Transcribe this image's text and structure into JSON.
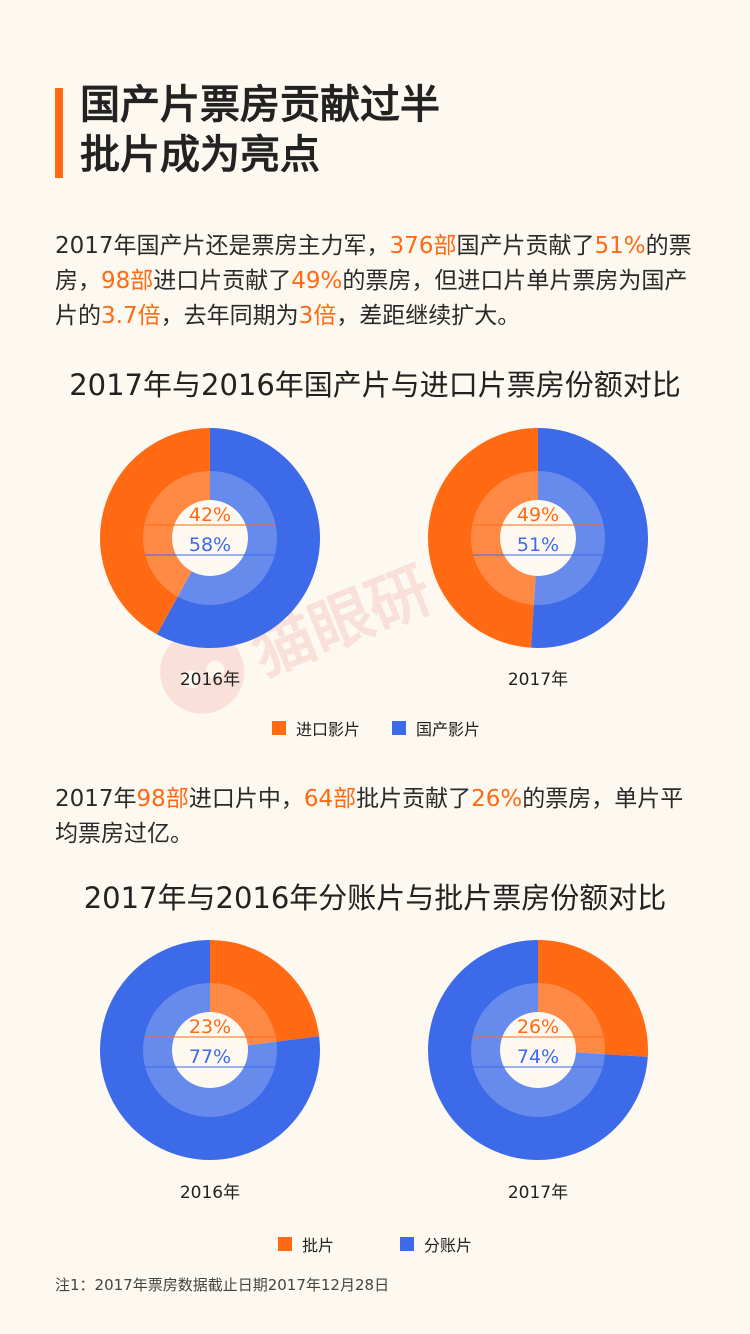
{
  "heading": {
    "line1": "国产片票房贡献过半",
    "line2": "批片成为亮点"
  },
  "para1": [
    {
      "t": "2017年国产片还是票房主力军，"
    },
    {
      "t": "376部",
      "hl": true
    },
    {
      "t": "国产片贡献了"
    },
    {
      "t": "51%",
      "hl": true
    },
    {
      "t": "的票房，"
    },
    {
      "t": "98部",
      "hl": true
    },
    {
      "t": "进口片贡献了"
    },
    {
      "t": "49%",
      "hl": true
    },
    {
      "t": "的票房，但进口片单片票房为国产片的"
    },
    {
      "t": "3.7倍",
      "hl": true
    },
    {
      "t": "，去年同期为"
    },
    {
      "t": "3倍",
      "hl": true
    },
    {
      "t": "，差距继续扩大。"
    }
  ],
  "para2": [
    {
      "t": "2017年"
    },
    {
      "t": "98部",
      "hl": true
    },
    {
      "t": "进口片中，"
    },
    {
      "t": "64部",
      "hl": true
    },
    {
      "t": "批片贡献了"
    },
    {
      "t": "26%",
      "hl": true
    },
    {
      "t": "的票房，单片平均票房过亿。"
    }
  ],
  "note": "注1：2017年票房数据截止日期2017年12月28日",
  "watermark": "猫眼研",
  "colors": {
    "orange": "#ff6a12",
    "blue": "#3d6ae8",
    "background": "#fdf8f0"
  },
  "chart_data": [
    {
      "type": "pie",
      "title": "2017年与2016年国产片与进口片票房份额对比",
      "legend": [
        {
          "name": "进口影片",
          "color": "#ff6a12"
        },
        {
          "name": "国产影片",
          "color": "#3d6ae8"
        }
      ],
      "pies": [
        {
          "label": "2016年",
          "values": [
            42,
            58
          ],
          "labels": [
            "42%",
            "58%"
          ]
        },
        {
          "label": "2017年",
          "values": [
            49,
            51
          ],
          "labels": [
            "49%",
            "51%"
          ]
        }
      ]
    },
    {
      "type": "pie",
      "title": "2017年与2016年分账片与批片票房份额对比",
      "legend": [
        {
          "name": "批片",
          "color": "#ff6a12"
        },
        {
          "name": "分账片",
          "color": "#3d6ae8"
        }
      ],
      "pies": [
        {
          "label": "2016年",
          "values": [
            23,
            77
          ],
          "labels": [
            "23%",
            "77%"
          ]
        },
        {
          "label": "2017年",
          "values": [
            26,
            74
          ],
          "labels": [
            "26%",
            "74%"
          ]
        }
      ]
    }
  ]
}
